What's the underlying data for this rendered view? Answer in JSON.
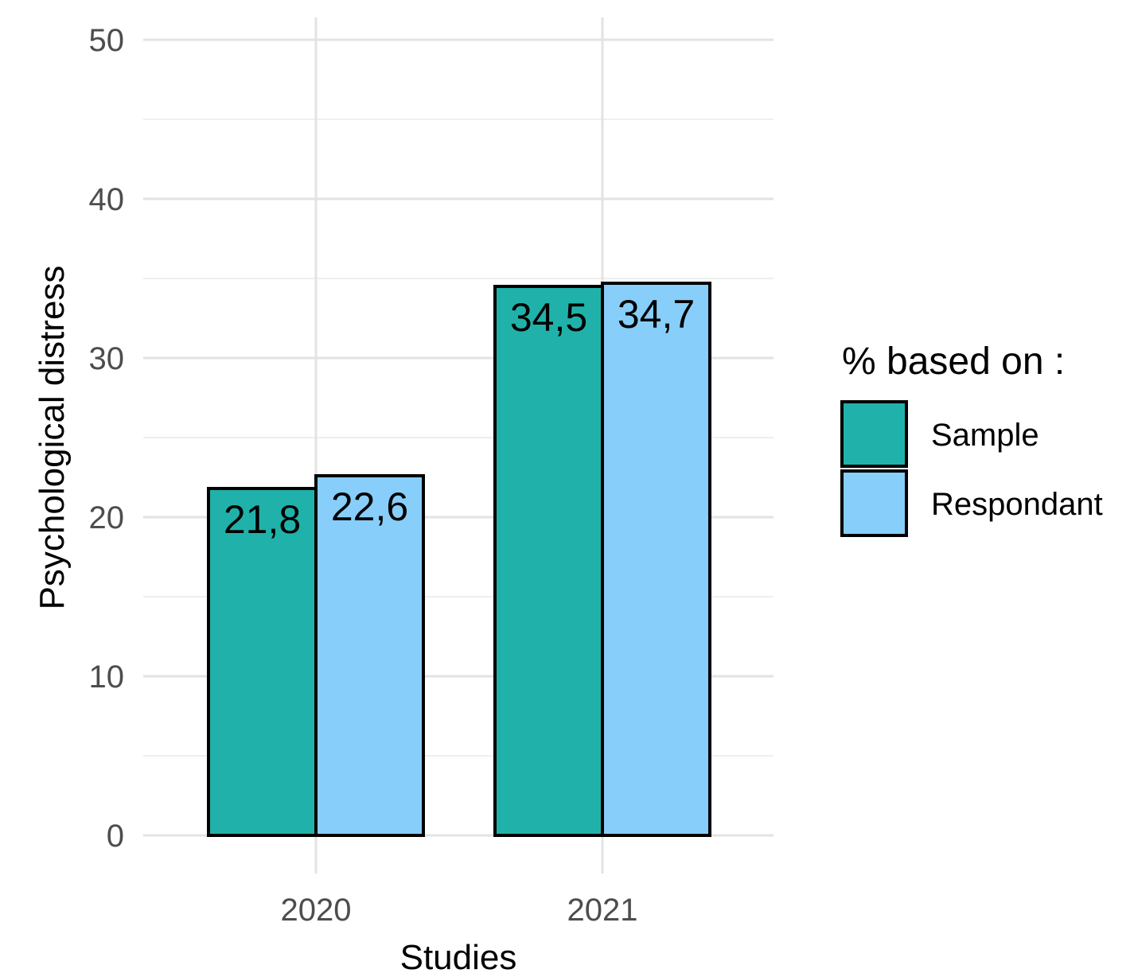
{
  "chart_data": {
    "type": "bar",
    "title": "",
    "xlabel": "Studies",
    "ylabel": "Psychological distress",
    "categories": [
      "2020",
      "2021"
    ],
    "series": [
      {
        "name": "Sample",
        "values": [
          21.8,
          34.5
        ],
        "labels": [
          "21,8",
          "34,5"
        ],
        "color": "#20b2aa"
      },
      {
        "name": "Respondant",
        "values": [
          22.6,
          34.7
        ],
        "labels": [
          "22,6",
          "34,7"
        ],
        "color": "#87cefa"
      }
    ],
    "ylim": [
      0,
      50
    ],
    "yticks": [
      0,
      10,
      20,
      30,
      40,
      50
    ],
    "grid": true,
    "legend": {
      "title": "% based on :",
      "position": "right"
    }
  }
}
